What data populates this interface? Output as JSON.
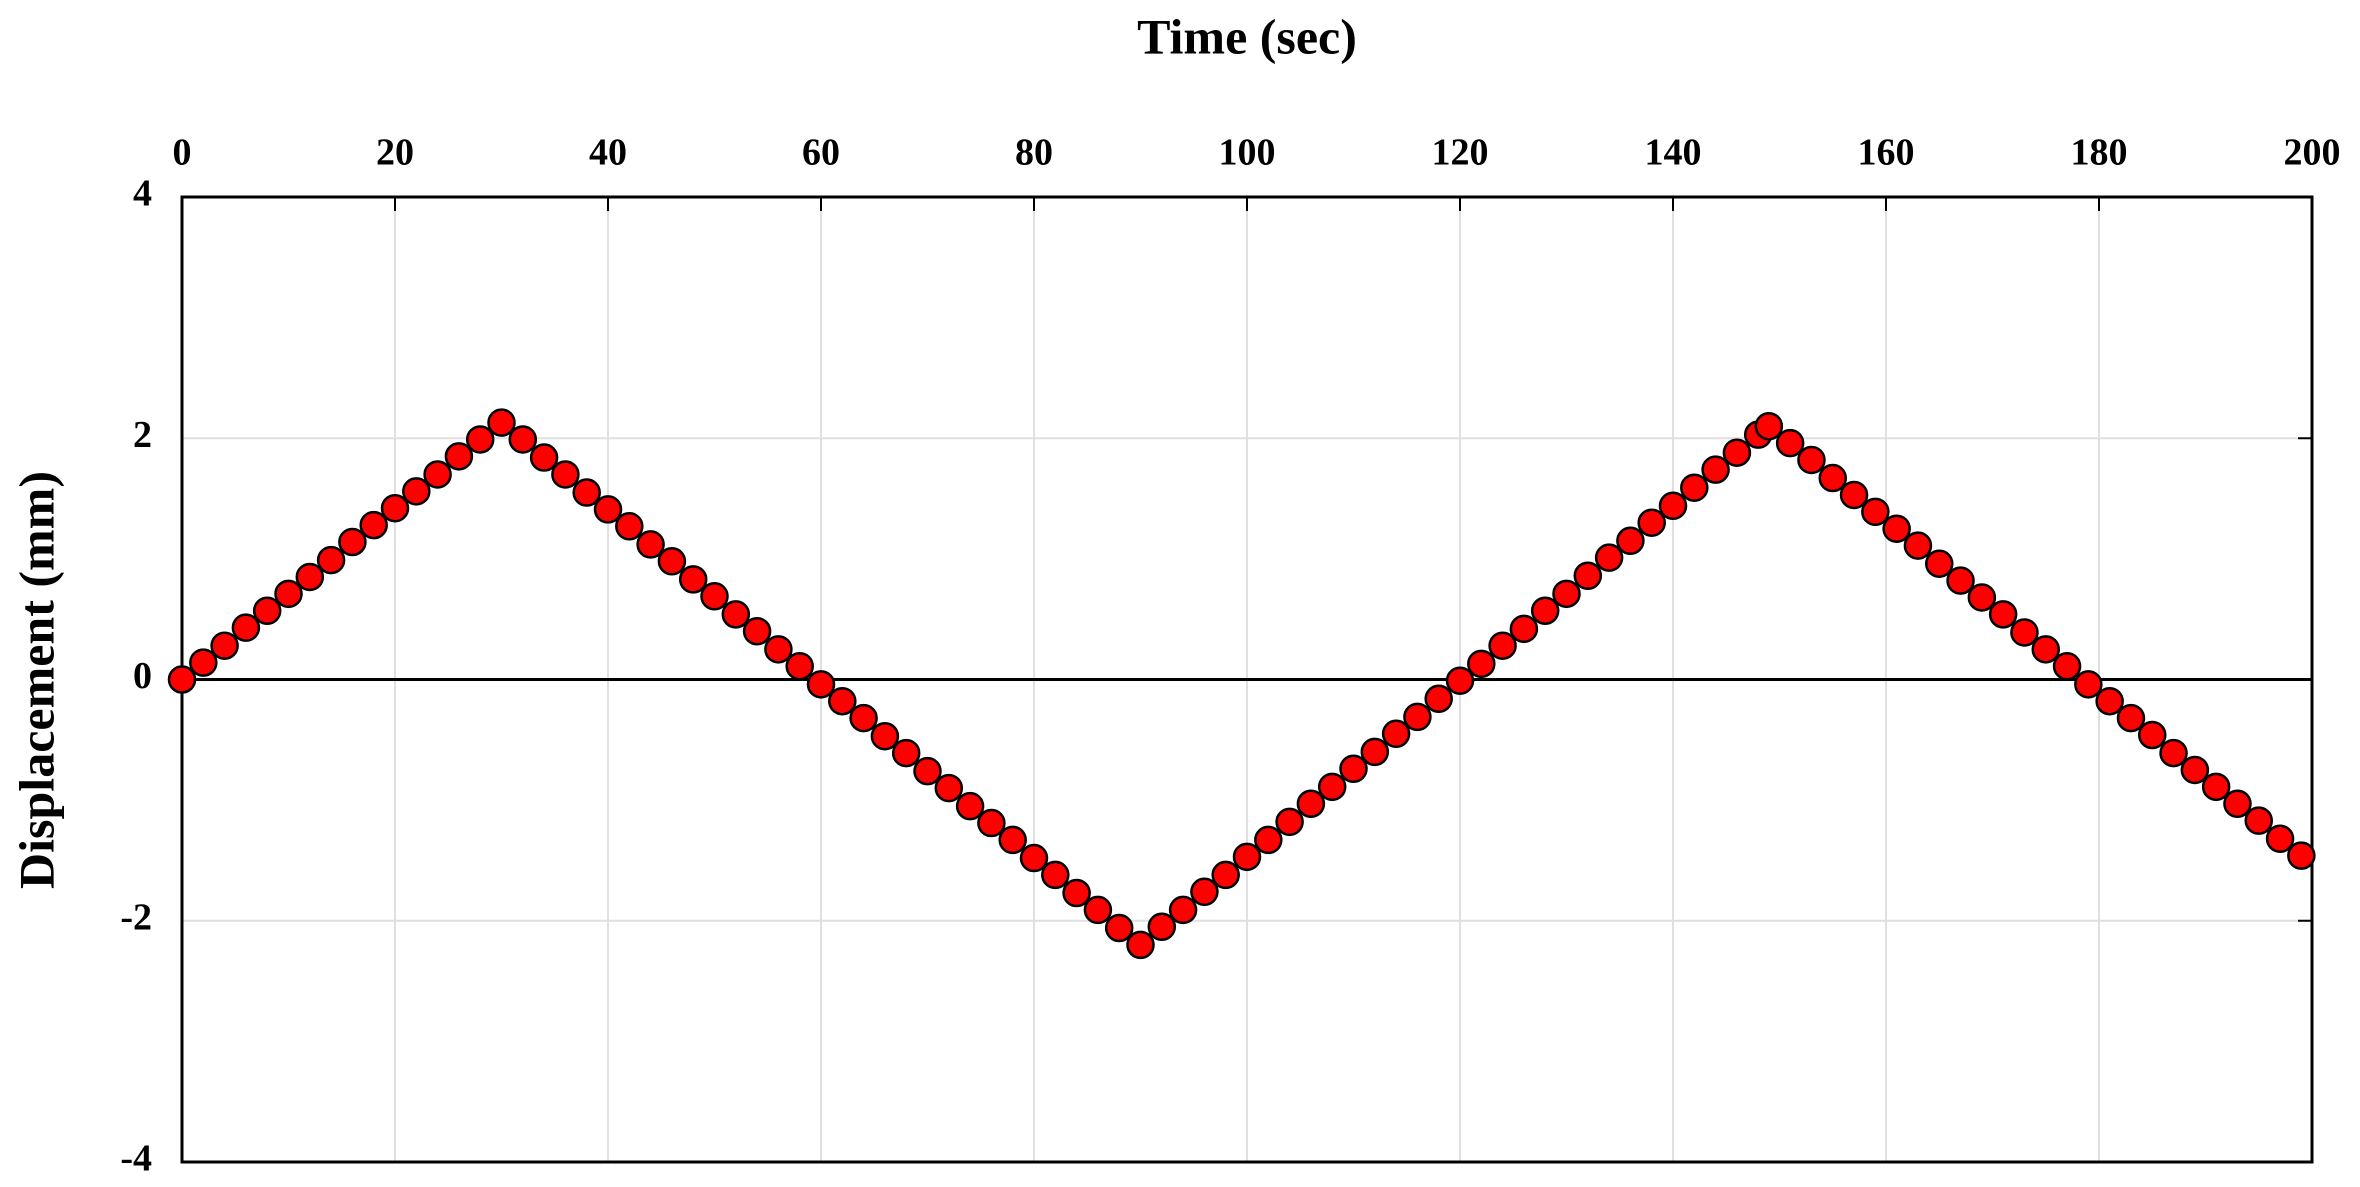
{
  "chart_data": {
    "type": "scatter",
    "x_label": "Time (sec)",
    "y_label": "Displacement (mm)",
    "x": [
      0,
      2,
      4,
      6,
      8,
      10,
      12,
      14,
      16,
      18,
      20,
      22,
      24,
      26,
      28,
      30,
      32,
      34,
      36,
      38,
      40,
      42,
      44,
      46,
      48,
      50,
      52,
      54,
      56,
      58,
      60,
      62,
      64,
      66,
      68,
      70,
      72,
      74,
      76,
      78,
      80,
      82,
      84,
      86,
      88,
      90,
      92,
      94,
      96,
      98,
      100,
      102,
      104,
      106,
      108,
      110,
      112,
      114,
      116,
      118,
      120,
      122,
      124,
      126,
      128,
      130,
      132,
      134,
      136,
      138,
      140,
      142,
      144,
      146,
      148,
      149,
      151,
      153,
      155,
      157,
      159,
      161,
      163,
      165,
      167,
      169,
      171,
      173,
      175,
      177,
      179,
      181,
      183,
      185,
      187,
      189,
      191,
      193,
      195,
      197,
      199
    ],
    "values": [
      0,
      0.14,
      0.28,
      0.43,
      0.57,
      0.71,
      0.85,
      0.99,
      1.14,
      1.28,
      1.42,
      1.56,
      1.7,
      1.85,
      1.99,
      2.13,
      1.99,
      1.84,
      1.7,
      1.55,
      1.41,
      1.27,
      1.12,
      0.98,
      0.83,
      0.69,
      0.54,
      0.4,
      0.25,
      0.11,
      -0.04,
      -0.18,
      -0.32,
      -0.47,
      -0.61,
      -0.76,
      -0.9,
      -1.05,
      -1.19,
      -1.33,
      -1.48,
      -1.62,
      -1.77,
      -1.91,
      -2.06,
      -2.2,
      -2.05,
      -1.91,
      -1.76,
      -1.62,
      -1.47,
      -1.33,
      -1.18,
      -1.03,
      -0.89,
      -0.74,
      -0.6,
      -0.45,
      -0.31,
      -0.16,
      -0.01,
      0.13,
      0.28,
      0.42,
      0.57,
      0.71,
      0.86,
      1.01,
      1.15,
      1.3,
      1.44,
      1.59,
      1.74,
      1.88,
      2.03,
      2.1,
      1.96,
      1.82,
      1.67,
      1.53,
      1.39,
      1.25,
      1.11,
      0.96,
      0.82,
      0.68,
      0.54,
      0.39,
      0.25,
      0.11,
      -0.04,
      -0.18,
      -0.32,
      -0.46,
      -0.61,
      -0.75,
      -0.89,
      -1.03,
      -1.17,
      -1.32,
      -1.46
    ],
    "color": "#ff0000",
    "line_color": "#000000",
    "xlim": [
      0,
      200
    ],
    "xticks": [
      0,
      20,
      40,
      60,
      80,
      100,
      120,
      140,
      160,
      180,
      200
    ],
    "ylim": [
      -4,
      4
    ],
    "yticks": [
      -4,
      -2,
      0,
      2,
      4
    ],
    "grid": true
  }
}
